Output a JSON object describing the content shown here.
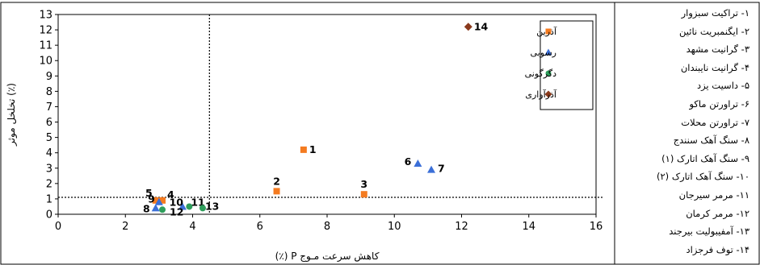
{
  "chart_data": {
    "type": "scatter",
    "xlabel": "کاهش سرعت مـوج P (٪)",
    "ylabel": "تخلخل موثر (٪)",
    "xlim": [
      0,
      16
    ],
    "ylim": [
      0,
      13
    ],
    "x_ticks": [
      0,
      2,
      4,
      6,
      8,
      10,
      12,
      14,
      16
    ],
    "y_ticks": [
      0,
      1,
      2,
      3,
      4,
      5,
      6,
      7,
      8,
      9,
      10,
      11,
      12,
      13
    ],
    "grid": false,
    "legend_position": "top-right",
    "reference_lines": {
      "vertical_x": 4.5,
      "horizontal_y": 1.1
    },
    "series": [
      {
        "name": "آذرین",
        "marker": "square",
        "color": "#F47B20",
        "points": [
          {
            "label": "1",
            "x": 7.3,
            "y": 4.2
          },
          {
            "label": "2",
            "x": 6.5,
            "y": 1.5
          },
          {
            "label": "3",
            "x": 9.1,
            "y": 1.3
          },
          {
            "label": "4",
            "x": 3.1,
            "y": 0.9
          },
          {
            "label": "5",
            "x": 2.9,
            "y": 0.9
          }
        ]
      },
      {
        "name": "رسوبی",
        "marker": "triangle",
        "color": "#3B6FD8",
        "points": [
          {
            "label": "6",
            "x": 10.7,
            "y": 3.3
          },
          {
            "label": "7",
            "x": 11.1,
            "y": 2.9
          },
          {
            "label": "8",
            "x": 2.9,
            "y": 0.4
          },
          {
            "label": "9",
            "x": 3.0,
            "y": 0.8
          },
          {
            "label": "10",
            "x": 3.7,
            "y": 0.5
          }
        ]
      },
      {
        "name": "دگرگونی",
        "marker": "circle",
        "color": "#2E9E5B",
        "points": [
          {
            "label": "11",
            "x": 3.9,
            "y": 0.5
          },
          {
            "label": "12",
            "x": 3.1,
            "y": 0.3
          },
          {
            "label": "13",
            "x": 4.3,
            "y": 0.4
          }
        ]
      },
      {
        "name": "آذرآواری",
        "marker": "diamond",
        "color": "#8A3A1C",
        "points": [
          {
            "label": "14",
            "x": 12.2,
            "y": 12.2
          }
        ]
      }
    ]
  },
  "sample_key": [
    "۱- تراکیت سبزوار",
    "۲- ایگنمبریت نائین",
    "۳- گرانیت مشهد",
    "۴- گرانیت نایبندان",
    "۵- داسیت یزد",
    "۶- تراورتن ماکو",
    "۷- تراورتن محلات",
    "۸- سنگ آهک سنندج",
    "۹- سنگ آهک اتارک (۱)",
    "۱۰- سنگ آهک اتارک (۲)",
    "۱۱- مرمر سیرجان",
    "۱۲- مرمر کرمان",
    "۱۳- آمفیبولیت بیرجند",
    "۱۴- توف فرجزاد"
  ]
}
